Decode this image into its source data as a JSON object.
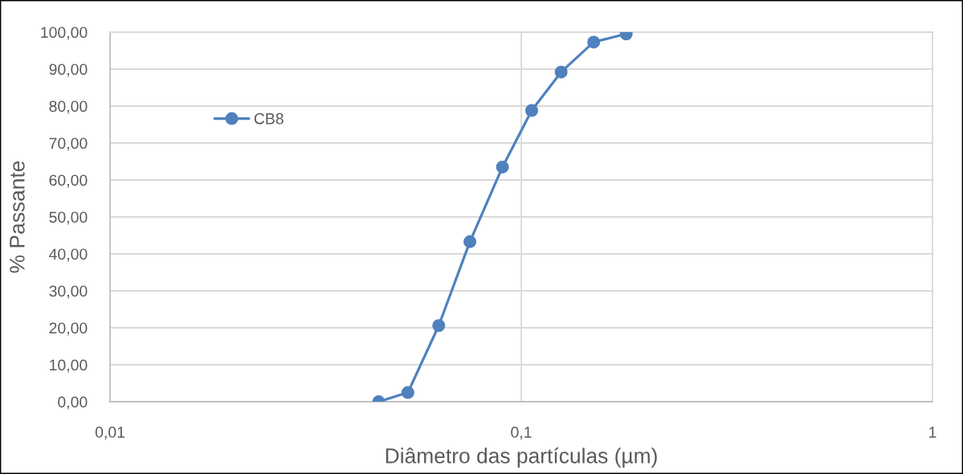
{
  "chart_data": {
    "type": "line",
    "xlabel": "Diâmetro das partículas (µm)",
    "ylabel": "% Passante",
    "x": [
      0.045,
      0.053,
      0.063,
      0.075,
      0.09,
      0.106,
      0.125,
      0.15,
      0.18
    ],
    "series": [
      {
        "name": "CB8",
        "color": "#4f81bd",
        "values": [
          0,
          2.5,
          20.6,
          43.3,
          63.5,
          78.8,
          89.2,
          97.3,
          99.5
        ]
      }
    ],
    "log": "x",
    "xlim": [
      0.01,
      1
    ],
    "xticks": [
      {
        "value": 0.01,
        "label": "0,01"
      },
      {
        "value": 0.1,
        "label": "0,1"
      },
      {
        "value": 1,
        "label": "1"
      }
    ],
    "ylim": [
      0,
      100
    ],
    "yticks": [
      {
        "value": 0,
        "label": "0,00"
      },
      {
        "value": 10,
        "label": "10,00"
      },
      {
        "value": 20,
        "label": "20,00"
      },
      {
        "value": 30,
        "label": "30,00"
      },
      {
        "value": 40,
        "label": "40,00"
      },
      {
        "value": 50,
        "label": "50,00"
      },
      {
        "value": 60,
        "label": "60,00"
      },
      {
        "value": 70,
        "label": "70,00"
      },
      {
        "value": 80,
        "label": "80,00"
      },
      {
        "value": 90,
        "label": "90,00"
      },
      {
        "value": 100,
        "label": "100,00"
      }
    ],
    "grid": true,
    "legend": "top left",
    "marker": "circle",
    "line_style": "solid"
  }
}
